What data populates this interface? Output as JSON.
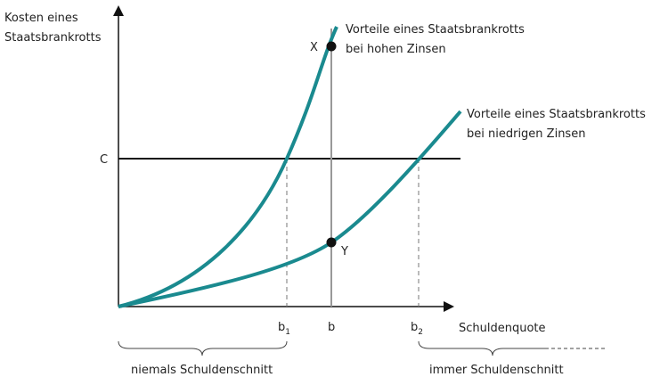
{
  "axes": {
    "y_label": [
      "Kosten eines",
      "Staatsbrankrotts"
    ],
    "x_label": "Schuldenquote",
    "c_label": "C"
  },
  "curves": {
    "high": [
      "Vorteile eines Staatsbrankrotts",
      "bei hohen Zinsen"
    ],
    "low": [
      "Vorteile eines Staatsbrankrotts",
      "bei niedrigen Zinsen"
    ]
  },
  "points": {
    "x": "X",
    "y": "Y"
  },
  "ticks": [
    {
      "label": "b",
      "sub": "1"
    },
    {
      "label": "b"
    },
    {
      "label": "b",
      "sub": "2"
    }
  ],
  "regions": {
    "left": "niemals Schuldenschnitt",
    "right": "immer Schuldenschnitt"
  }
}
